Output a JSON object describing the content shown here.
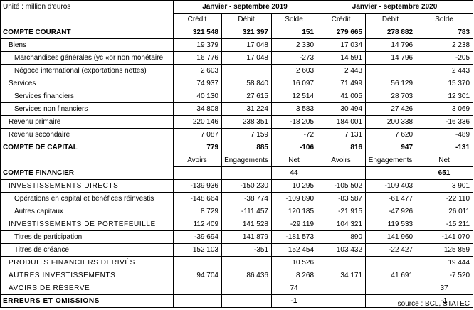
{
  "unit": "Unité : million d'euros",
  "period_2019": "Janvier - septembre 2019",
  "period_2020": "Janvier - septembre 2020",
  "col_heads_a": [
    "Crédit",
    "Débit",
    "Solde",
    "Crédit",
    "Débit",
    "Solde"
  ],
  "col_heads_b": [
    "Avoirs",
    "Engagements",
    "Net",
    "Avoirs",
    "Engagements",
    "Net"
  ],
  "rows": [
    {
      "label": "COMPTE COURANT",
      "v": [
        "321 548",
        "321 397",
        "151",
        "279 665",
        "278 882",
        "783"
      ]
    },
    {
      "label": "Biens",
      "v": [
        "19 379",
        "17 048",
        "2 330",
        "17 034",
        "14 796",
        "2 238"
      ]
    },
    {
      "label": "Marchandises générales (yc «or non monétaire",
      "v": [
        "16 776",
        "17 048",
        "-273",
        "14 591",
        "14 796",
        "-205"
      ]
    },
    {
      "label": "Négoce international (exportations nettes)",
      "v": [
        "2 603",
        "",
        "2 603",
        "2 443",
        "",
        "2 443"
      ]
    },
    {
      "label": "Services",
      "v": [
        "74 937",
        "58 840",
        "16 097",
        "71 499",
        "56 129",
        "15 370"
      ]
    },
    {
      "label": "Services financiers",
      "v": [
        "40 130",
        "27 615",
        "12 514",
        "41 005",
        "28 703",
        "12 301"
      ]
    },
    {
      "label": "Services non financiers",
      "v": [
        "34 808",
        "31 224",
        "3 583",
        "30 494",
        "27 426",
        "3 069"
      ]
    },
    {
      "label": "Revenu primaire",
      "v": [
        "220 146",
        "238 351",
        "-18 205",
        "184 001",
        "200 338",
        "-16 336"
      ]
    },
    {
      "label": "Revenu secondaire",
      "v": [
        "7 087",
        "7 159",
        "-72",
        "7 131",
        "7 620",
        "-489"
      ]
    },
    {
      "label": "COMPTE DE CAPITAL",
      "v": [
        "779",
        "885",
        "-106",
        "816",
        "947",
        "-131"
      ]
    },
    {
      "label": "COMPTE FINANCIER",
      "v": [
        "",
        "",
        "44",
        "",
        "",
        "651"
      ]
    },
    {
      "label": "INVESTISSEMENTS DIRECTS",
      "v": [
        "-139 936",
        "-150 230",
        "10 295",
        "-105 502",
        "-109 403",
        "3 901"
      ]
    },
    {
      "label": "Opérations en capital et bénéfices réinvestis",
      "v": [
        "-148 664",
        "-38 774",
        "-109 890",
        "-83 587",
        "-61 477",
        "-22 110"
      ]
    },
    {
      "label": "Autres capitaux",
      "v": [
        "8 729",
        "-111 457",
        "120 185",
        "-21 915",
        "-47 926",
        "26 011"
      ]
    },
    {
      "label": "INVESTISSEMENTS DE PORTEFEUILLE",
      "v": [
        "112 409",
        "141 528",
        "-29 119",
        "104 321",
        "119 533",
        "-15 211"
      ]
    },
    {
      "label": "Titres de participation",
      "v": [
        "-39 694",
        "141 879",
        "-181 573",
        "890",
        "141 960",
        "-141 070"
      ]
    },
    {
      "label": "Titres de créance",
      "v": [
        "152 103",
        "-351",
        "152 454",
        "103 432",
        "-22 427",
        "125 859"
      ]
    },
    {
      "label": "PRODUITS FINANCIERS DERIVÉS",
      "v": [
        "",
        "",
        "10 526",
        "",
        "",
        "19 444"
      ]
    },
    {
      "label": "AUTRES INVESTISSEMENTS",
      "v": [
        "94 704",
        "86 436",
        "8 268",
        "34 171",
        "41 691",
        "-7 520"
      ]
    },
    {
      "label": "AVOIRS DE RÉSERVE",
      "v": [
        "",
        "",
        "74",
        "",
        "",
        "37"
      ]
    },
    {
      "label": "ERREURS ET OMISSIONS",
      "v": [
        "",
        "",
        "-1",
        "",
        "",
        "-1"
      ]
    }
  ],
  "source": "source : BCL, STATEC"
}
